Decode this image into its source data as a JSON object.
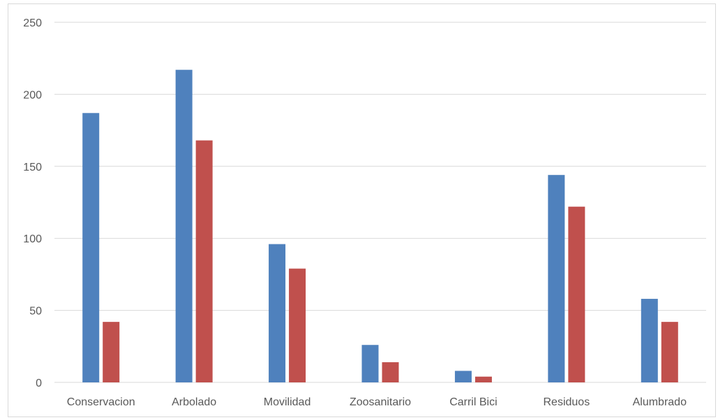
{
  "chart_data": {
    "type": "bar",
    "title": "",
    "xlabel": "",
    "ylabel": "",
    "ylim": [
      0,
      250
    ],
    "yticks": [
      0,
      50,
      100,
      150,
      200,
      250
    ],
    "grid": true,
    "legend": "none",
    "categories": [
      "Conservacion",
      "Arbolado",
      "Movilidad",
      "Zoosanitario",
      "Carril Bici",
      "Residuos",
      "Alumbrado"
    ],
    "series": [
      {
        "values": [
          187,
          217,
          96,
          26,
          8,
          144,
          58
        ],
        "color": "#4f81bd"
      },
      {
        "values": [
          42,
          168,
          79,
          14,
          4,
          122,
          42
        ],
        "color": "#c0504d"
      }
    ]
  }
}
